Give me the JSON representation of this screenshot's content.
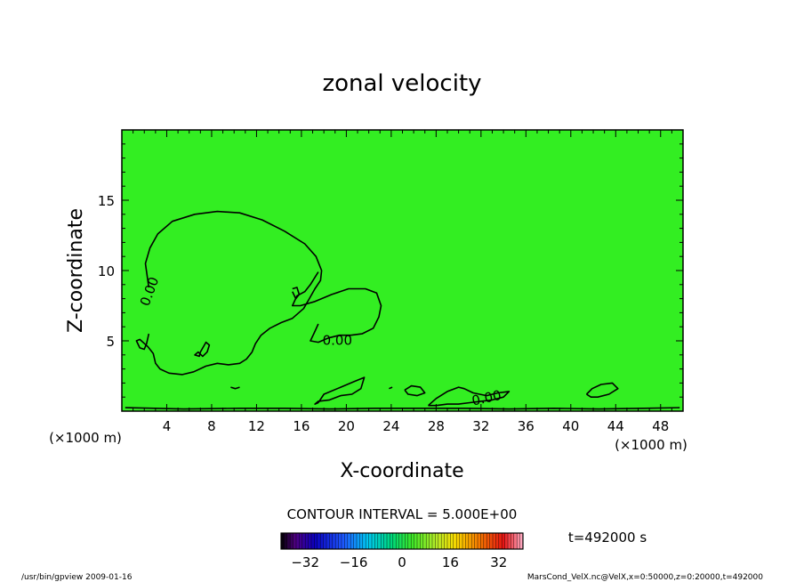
{
  "chart_data": {
    "type": "heatmap",
    "title": "zonal velocity",
    "xlabel": "X-coordinate",
    "ylabel": "Z-coordinate",
    "x_unit": "(×1000 m)",
    "y_unit": "(×1000 m)",
    "xlim": [
      0,
      50
    ],
    "ylim": [
      0,
      20
    ],
    "x_ticks": [
      4,
      8,
      12,
      16,
      20,
      24,
      28,
      32,
      36,
      40,
      44,
      48
    ],
    "y_ticks": [
      5,
      10,
      15
    ],
    "contour_label": "0.00",
    "contour_interval_text": "CONTOUR INTERVAL = 5.000E+00",
    "time_text": "t=492000 s",
    "colorbar": {
      "range": [
        -40,
        40
      ],
      "ticks": [
        -32,
        -16,
        0,
        16,
        32
      ],
      "tick_labels": [
        "−32",
        "−16",
        "0",
        "16",
        "32"
      ]
    },
    "background_color": "#33ee22",
    "contours": [
      {
        "x": [
          2.4,
          2.1,
          2.5,
          3.2,
          4.5,
          6.5,
          8.5,
          10.5,
          12.5,
          14.5,
          16.3,
          17.3,
          17.8,
          17.7,
          17.2,
          16.7,
          16.2,
          15.2,
          14.2,
          13.2,
          12.4,
          11.9,
          11.6,
          11.1,
          10.5,
          9.5,
          8.5,
          7.5,
          6.4,
          5.4,
          4.2,
          3.4,
          3.0,
          2.8,
          2.3,
          1.6,
          1.3,
          1.6,
          2.0,
          2.2,
          2.4
        ],
        "y": [
          8.8,
          10.5,
          11.6,
          12.6,
          13.5,
          14.0,
          14.2,
          14.1,
          13.6,
          12.8,
          11.9,
          11.0,
          10.0,
          9.3,
          8.7,
          8.0,
          7.3,
          6.6,
          6.3,
          5.9,
          5.4,
          4.8,
          4.2,
          3.7,
          3.4,
          3.3,
          3.4,
          3.2,
          2.8,
          2.6,
          2.7,
          3.0,
          3.4,
          4.1,
          4.6,
          5.1,
          5.0,
          4.5,
          4.4,
          4.8,
          5.5
        ]
      },
      {
        "x": [
          17.5,
          16.8,
          16.3,
          15.6,
          15.2,
          15.9,
          17.2,
          18.7,
          20.2,
          21.7,
          22.7,
          23.1,
          22.9,
          22.4,
          21.4,
          20.4,
          19.4,
          18.4,
          17.5,
          16.8,
          17.1,
          17.5
        ],
        "y": [
          9.9,
          9.0,
          8.5,
          8.2,
          7.5,
          7.5,
          7.8,
          8.3,
          8.7,
          8.7,
          8.4,
          7.5,
          6.7,
          5.9,
          5.5,
          5.4,
          5.4,
          5.2,
          4.9,
          5.0,
          5.5,
          6.2
        ]
      },
      {
        "x": [
          15.2,
          15.6,
          15.8,
          15.5,
          15.2
        ],
        "y": [
          8.7,
          8.8,
          8.3,
          8.0,
          8.5
        ]
      },
      {
        "x": [
          7.0,
          7.5,
          7.8,
          7.6,
          7.2,
          6.8,
          6.5,
          6.9,
          7.0
        ],
        "y": [
          4.2,
          4.9,
          4.7,
          4.2,
          3.9,
          4.2,
          4.0,
          3.9,
          4.2
        ]
      },
      {
        "x": [
          9.7,
          10.1,
          10.5
        ],
        "y": [
          1.7,
          1.6,
          1.7
        ]
      },
      {
        "x": [
          17.5,
          18.0,
          19.5,
          20.7,
          21.6,
          21.3,
          20.5,
          19.5,
          18.5,
          17.5,
          17.2,
          17.5
        ],
        "y": [
          0.6,
          1.2,
          1.7,
          2.1,
          2.4,
          1.6,
          1.2,
          1.1,
          0.8,
          0.7,
          0.5,
          0.6
        ]
      },
      {
        "x": [
          25.2,
          25.8,
          26.6,
          27.0,
          26.3,
          25.5,
          25.2
        ],
        "y": [
          1.5,
          1.8,
          1.7,
          1.3,
          1.1,
          1.2,
          1.5
        ]
      },
      {
        "x": [
          23.8,
          24.1
        ],
        "y": [
          1.6,
          1.7
        ]
      },
      {
        "x": [
          27.3,
          28.0,
          29.0,
          30.0,
          30.5,
          31.3,
          32.5,
          33.5,
          34.5,
          34.0,
          33.0,
          32.0,
          31.0,
          30.0,
          29.0,
          28.0,
          27.3
        ],
        "y": [
          0.4,
          0.9,
          1.4,
          1.7,
          1.6,
          1.3,
          1.1,
          1.3,
          1.4,
          1.0,
          0.8,
          0.7,
          0.6,
          0.5,
          0.5,
          0.4,
          0.4
        ]
      },
      {
        "x": [
          41.4,
          41.9,
          42.7,
          43.7,
          44.2,
          43.4,
          42.4,
          41.8,
          41.4
        ],
        "y": [
          1.2,
          1.6,
          1.9,
          2.0,
          1.6,
          1.2,
          1.0,
          1.0,
          1.2
        ]
      },
      {
        "x": [
          0.3,
          5.5,
          10.5,
          14.5,
          18.5,
          22.5,
          26.5,
          30.5,
          34.5,
          38.5,
          42.5,
          46.5,
          49.7
        ],
        "y": [
          0.25,
          0.15,
          0.2,
          0.2,
          0.15,
          0.2,
          0.2,
          0.2,
          0.15,
          0.2,
          0.15,
          0.2,
          0.25
        ]
      }
    ],
    "contour_labels_positions": [
      {
        "x": 2.5,
        "y": 8.5,
        "rotate": -70
      },
      {
        "x": 19.2,
        "y": 5.0,
        "rotate": 0
      },
      {
        "x": 32.5,
        "y": 0.9,
        "rotate": -12
      }
    ]
  },
  "footer": {
    "program": "/usr/bin/gpview   2009-01-16",
    "source": "MarsCond_VelX.nc@VelX,x=0:50000,z=0:20000,t=492000"
  }
}
